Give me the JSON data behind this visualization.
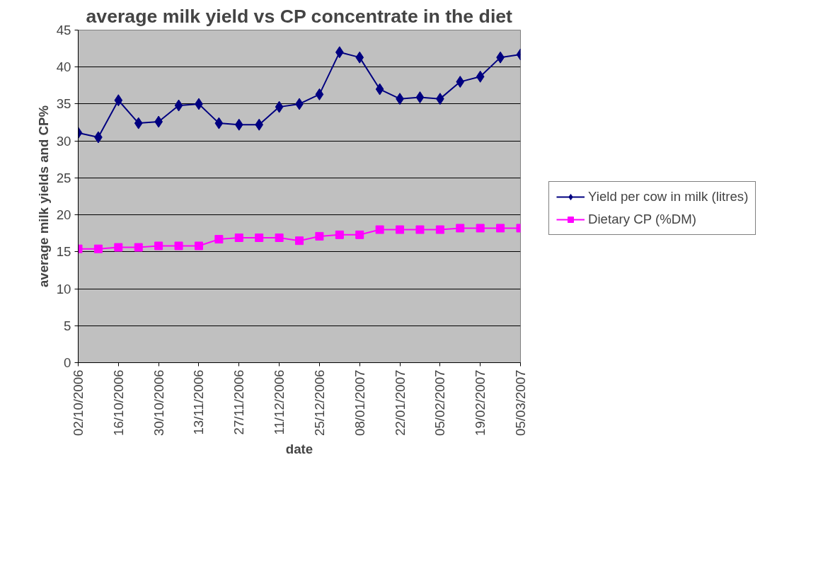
{
  "chart_data": {
    "type": "line",
    "title": "average milk yield vs CP concentrate in the diet",
    "xlabel": "date",
    "ylabel": "average milk yields and CP%",
    "x": [
      "2006-10-02",
      "2006-10-09",
      "2006-10-16",
      "2006-10-23",
      "2006-10-30",
      "2006-11-06",
      "2006-11-13",
      "2006-11-20",
      "2006-11-27",
      "2006-12-04",
      "2006-12-11",
      "2006-12-18",
      "2006-12-25",
      "2007-01-01",
      "2007-01-08",
      "2007-01-15",
      "2007-01-22",
      "2007-01-29",
      "2007-02-05",
      "2007-02-12",
      "2007-02-19",
      "2007-02-26",
      "2007-03-05"
    ],
    "series": [
      {
        "name": "Yield per cow in milk (litres)",
        "color": "#000080",
        "marker": "diamond",
        "values": [
          31.1,
          30.5,
          35.5,
          32.4,
          32.6,
          34.8,
          35.0,
          32.4,
          32.2,
          32.2,
          34.6,
          35.0,
          36.3,
          42.0,
          41.3,
          37.0,
          35.7,
          35.9,
          35.7,
          38.0,
          38.7,
          41.3,
          41.7
        ]
      },
      {
        "name": "Dietary CP (%DM)",
        "color": "#ff00ff",
        "marker": "square",
        "values": [
          15.4,
          15.4,
          15.6,
          15.6,
          15.8,
          15.8,
          15.8,
          16.7,
          16.9,
          16.9,
          16.9,
          16.5,
          17.1,
          17.3,
          17.3,
          18.0,
          18.0,
          18.0,
          18.0,
          18.2,
          18.2,
          18.2,
          18.2
        ]
      }
    ],
    "xlim": [
      "2006-10-02",
      "2007-03-05"
    ],
    "xticks": [
      {
        "value": "2006-10-02",
        "label": "02/10/2006"
      },
      {
        "value": "2006-10-16",
        "label": "16/10/2006"
      },
      {
        "value": "2006-10-30",
        "label": "30/10/2006"
      },
      {
        "value": "2006-11-13",
        "label": "13/11/2006"
      },
      {
        "value": "2006-11-27",
        "label": "27/11/2006"
      },
      {
        "value": "2006-12-11",
        "label": "11/12/2006"
      },
      {
        "value": "2006-12-25",
        "label": "25/12/2006"
      },
      {
        "value": "2007-01-08",
        "label": "08/01/2007"
      },
      {
        "value": "2007-01-22",
        "label": "22/01/2007"
      },
      {
        "value": "2007-02-05",
        "label": "05/02/2007"
      },
      {
        "value": "2007-02-19",
        "label": "19/02/2007"
      },
      {
        "value": "2007-03-05",
        "label": "05/03/2007"
      }
    ],
    "ylim": [
      0,
      45
    ],
    "yticks": [
      0,
      5,
      10,
      15,
      20,
      25,
      30,
      35,
      40,
      45
    ],
    "grid": "y",
    "legend": "right",
    "line_style": "solid"
  }
}
